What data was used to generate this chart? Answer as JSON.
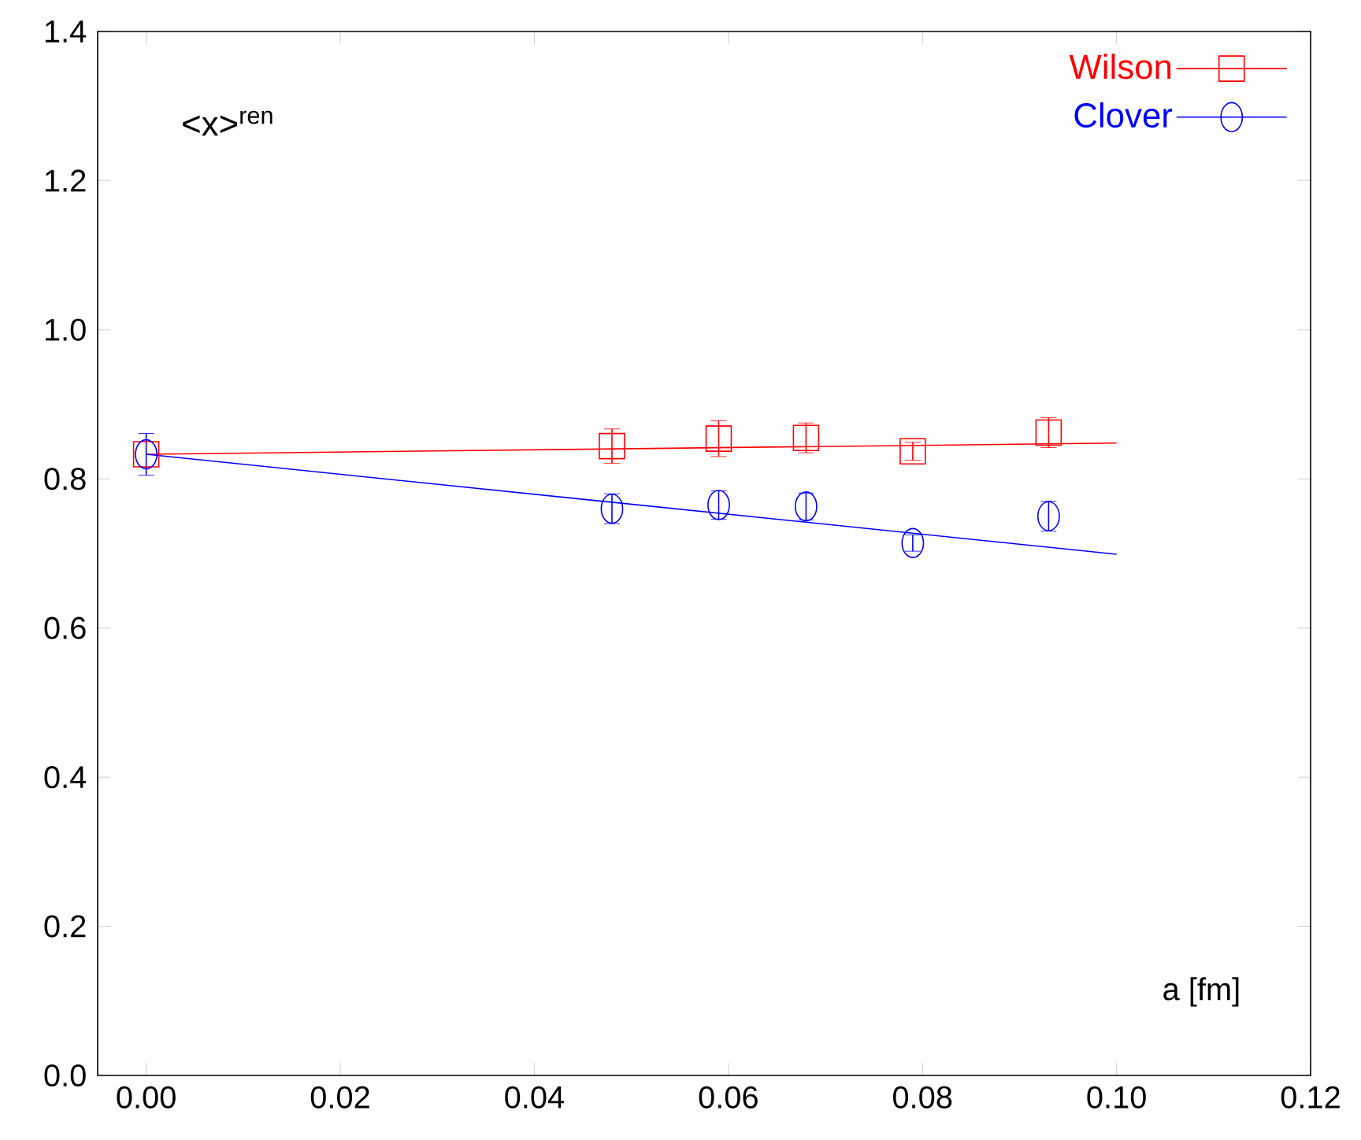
{
  "chart_data": {
    "type": "scatter",
    "xlabel": "a [fm]",
    "annotations": [
      "<x>$^{ren}$"
    ],
    "xlim": [
      -0.005,
      0.12
    ],
    "ylim": [
      0,
      1.4
    ],
    "xticks": [
      {
        "value": 0,
        "label": "0.00"
      },
      {
        "value": 0.02,
        "label": "0.02"
      },
      {
        "value": 0.04,
        "label": "0.04"
      },
      {
        "value": 0.06,
        "label": "0.06"
      },
      {
        "value": 0.08,
        "label": "0.08"
      },
      {
        "value": 0.1,
        "label": "0.10"
      },
      {
        "value": 0.12,
        "label": "0.12"
      }
    ],
    "yticks": [
      {
        "value": 0,
        "label": "0.0"
      },
      {
        "value": 0.2,
        "label": "0.2"
      },
      {
        "value": 0.4,
        "label": "0.4"
      },
      {
        "value": 0.6,
        "label": "0.6"
      },
      {
        "value": 0.8,
        "label": "0.8"
      },
      {
        "value": 1.0,
        "label": "1.0"
      },
      {
        "value": 1.2,
        "label": "1.2"
      },
      {
        "value": 1.4,
        "label": "1.4"
      }
    ],
    "grid": false,
    "legend": "top right",
    "series": [
      {
        "name": "Wilson",
        "color": "#ff0000",
        "marker": "square",
        "x": [
          0,
          0.048,
          0.059,
          0.068,
          0.079,
          0.093
        ],
        "values": [
          0.833,
          0.844,
          0.854,
          0.855,
          0.837,
          0.862
        ],
        "errors": [
          null,
          0.023,
          0.024,
          0.02,
          0.012,
          0.02
        ]
      },
      {
        "name": "Clover",
        "color": "#0000ff",
        "marker": "circle",
        "x": [
          0,
          0.048,
          0.059,
          0.068,
          0.079,
          0.093
        ],
        "values": [
          0.833,
          0.76,
          0.765,
          0.763,
          0.714,
          0.75
        ],
        "errors": [
          0.028,
          0.02,
          0.019,
          0.018,
          0.011,
          0.02
        ]
      },
      {
        "type": "line",
        "color": "#ff0000",
        "marker": "none",
        "x": [
          0,
          0.1
        ],
        "values": [
          0.833,
          0.848
        ]
      },
      {
        "type": "line",
        "color": "#0000ff",
        "marker": "none",
        "x": [
          0,
          0.1
        ],
        "values": [
          0.833,
          0.699
        ]
      }
    ]
  }
}
